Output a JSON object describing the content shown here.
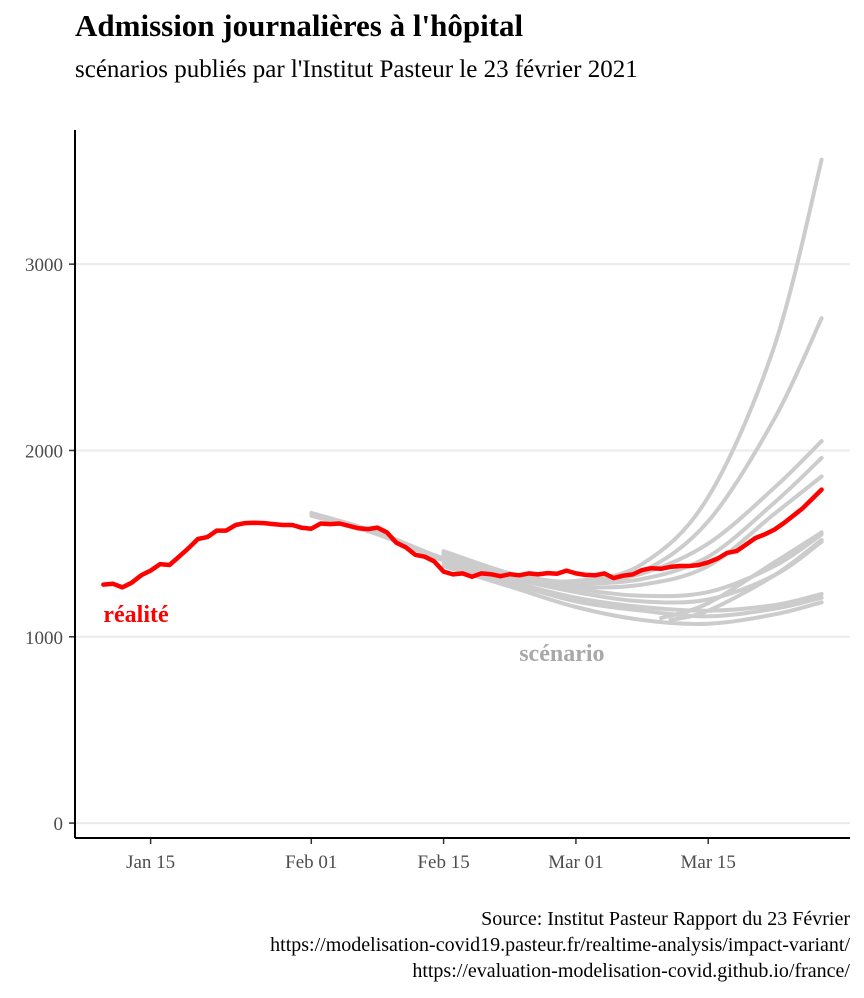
{
  "header": {
    "title": "Admission journalières à l'hôpital",
    "subtitle": "scénarios publiés par l'Institut Pasteur le 23 février 2021"
  },
  "caption": {
    "lines": [
      "Source: Institut Pasteur Rapport du 23 Février",
      "https://modelisation-covid19.pasteur.fr/realtime-analysis/impact-variant/",
      "https://evaluation-modelisation-covid.github.io/france/"
    ]
  },
  "colors": {
    "reality": "#ff0000",
    "scenario": "#cccccc",
    "scenario_label": "#a8a8a8",
    "grid": "#ebebeb",
    "axis": "#000000"
  },
  "chart_data": {
    "type": "line",
    "title": "Admission journalières à l'hôpital",
    "subtitle": "scénarios publiés par l'Institut Pasteur le 23 février 2021",
    "xlabel": "",
    "ylabel": "",
    "x_ticks": [
      {
        "date": "2021-01-15",
        "label": "Jan 15"
      },
      {
        "date": "2021-02-01",
        "label": "Feb 01"
      },
      {
        "date": "2021-02-15",
        "label": "Feb 15"
      },
      {
        "date": "2021-03-01",
        "label": "Mar 01"
      },
      {
        "date": "2021-03-15",
        "label": "Mar 15"
      }
    ],
    "xlim": [
      "2021-01-07",
      "2021-03-30"
    ],
    "y_ticks": [
      0,
      1000,
      2000,
      3000
    ],
    "ylim": [
      -80,
      3720
    ],
    "grid": "horizontal",
    "annotations": [
      {
        "text": "réalité",
        "date": "2021-01-10",
        "value": 1080,
        "color": "#ff0000"
      },
      {
        "text": "scénario",
        "date": "2021-02-23",
        "value": 870,
        "color": "#a8a8a8"
      }
    ],
    "series": [
      {
        "role": "reality",
        "x": [
          "2021-01-10",
          "2021-01-11",
          "2021-01-12",
          "2021-01-13",
          "2021-01-14",
          "2021-01-15",
          "2021-01-16",
          "2021-01-17",
          "2021-01-18",
          "2021-01-19",
          "2021-01-20",
          "2021-01-21",
          "2021-01-22",
          "2021-01-23",
          "2021-01-24",
          "2021-01-25",
          "2021-01-26",
          "2021-01-27",
          "2021-01-28",
          "2021-01-29",
          "2021-01-30",
          "2021-01-31",
          "2021-02-01",
          "2021-02-02",
          "2021-02-03",
          "2021-02-04",
          "2021-02-05",
          "2021-02-06",
          "2021-02-07",
          "2021-02-08",
          "2021-02-09",
          "2021-02-10",
          "2021-02-11",
          "2021-02-12",
          "2021-02-13",
          "2021-02-14",
          "2021-02-15",
          "2021-02-16",
          "2021-02-17",
          "2021-02-18",
          "2021-02-19",
          "2021-02-20",
          "2021-02-21",
          "2021-02-22",
          "2021-02-23",
          "2021-02-24",
          "2021-02-25",
          "2021-02-26",
          "2021-02-27",
          "2021-02-28",
          "2021-03-01",
          "2021-03-02",
          "2021-03-03",
          "2021-03-04",
          "2021-03-05",
          "2021-03-06",
          "2021-03-07",
          "2021-03-08",
          "2021-03-09",
          "2021-03-10",
          "2021-03-11",
          "2021-03-12",
          "2021-03-13",
          "2021-03-14",
          "2021-03-15",
          "2021-03-16",
          "2021-03-17",
          "2021-03-18",
          "2021-03-19",
          "2021-03-20",
          "2021-03-21",
          "2021-03-22",
          "2021-03-23",
          "2021-03-24",
          "2021-03-25",
          "2021-03-26",
          "2021-03-27"
        ],
        "values": [
          1280,
          1285,
          1265,
          1290,
          1330,
          1355,
          1390,
          1385,
          1430,
          1475,
          1525,
          1535,
          1570,
          1570,
          1600,
          1610,
          1612,
          1610,
          1605,
          1600,
          1600,
          1585,
          1580,
          1608,
          1605,
          1608,
          1595,
          1582,
          1578,
          1586,
          1560,
          1505,
          1480,
          1440,
          1430,
          1405,
          1350,
          1335,
          1340,
          1322,
          1340,
          1336,
          1325,
          1336,
          1330,
          1340,
          1335,
          1342,
          1338,
          1355,
          1340,
          1332,
          1330,
          1340,
          1315,
          1328,
          1335,
          1358,
          1368,
          1365,
          1375,
          1380,
          1380,
          1385,
          1400,
          1420,
          1450,
          1460,
          1495,
          1530,
          1550,
          1575,
          1610,
          1650,
          1690,
          1740,
          1790
        ]
      },
      {
        "role": "scenario",
        "x": [
          "2021-02-01",
          "2021-02-08",
          "2021-02-15",
          "2021-02-22",
          "2021-03-01",
          "2021-03-08",
          "2021-03-15",
          "2021-03-22",
          "2021-03-27"
        ],
        "values": [
          1665,
          1560,
          1420,
          1320,
          1300,
          1390,
          1750,
          2560,
          3560
        ]
      },
      {
        "role": "scenario",
        "x": [
          "2021-02-01",
          "2021-02-08",
          "2021-02-15",
          "2021-02-22",
          "2021-03-01",
          "2021-03-08",
          "2021-03-15",
          "2021-03-22",
          "2021-03-27"
        ],
        "values": [
          1650,
          1550,
          1410,
          1310,
          1280,
          1350,
          1620,
          2170,
          2710
        ]
      },
      {
        "role": "scenario",
        "x": [
          "2021-02-15",
          "2021-02-22",
          "2021-03-01",
          "2021-03-08",
          "2021-03-15",
          "2021-03-22",
          "2021-03-27"
        ],
        "values": [
          1440,
          1330,
          1290,
          1340,
          1500,
          1800,
          2050
        ]
      },
      {
        "role": "scenario",
        "x": [
          "2021-02-15",
          "2021-02-22",
          "2021-03-01",
          "2021-03-08",
          "2021-03-15",
          "2021-03-22",
          "2021-03-27"
        ],
        "values": [
          1450,
          1340,
          1290,
          1310,
          1430,
          1720,
          1960
        ]
      },
      {
        "role": "scenario",
        "x": [
          "2021-02-15",
          "2021-02-22",
          "2021-03-01",
          "2021-03-08",
          "2021-03-15",
          "2021-03-22",
          "2021-03-27"
        ],
        "values": [
          1430,
          1330,
          1270,
          1280,
          1380,
          1660,
          1860
        ]
      },
      {
        "role": "scenario",
        "x": [
          "2021-02-15",
          "2021-02-22",
          "2021-03-01",
          "2021-03-08",
          "2021-03-15",
          "2021-03-22",
          "2021-03-27"
        ],
        "values": [
          1460,
          1340,
          1260,
          1220,
          1240,
          1380,
          1550
        ]
      },
      {
        "role": "scenario",
        "x": [
          "2021-02-15",
          "2021-02-22",
          "2021-03-01",
          "2021-03-08",
          "2021-03-15",
          "2021-03-22",
          "2021-03-27"
        ],
        "values": [
          1440,
          1320,
          1240,
          1190,
          1200,
          1330,
          1510
        ]
      },
      {
        "role": "scenario",
        "x": [
          "2021-02-15",
          "2021-02-22",
          "2021-03-01",
          "2021-03-08",
          "2021-03-15",
          "2021-03-22",
          "2021-03-27"
        ],
        "values": [
          1420,
          1300,
          1210,
          1160,
          1140,
          1170,
          1230
        ]
      },
      {
        "role": "scenario",
        "x": [
          "2021-02-15",
          "2021-02-22",
          "2021-03-01",
          "2021-03-08",
          "2021-03-15",
          "2021-03-22",
          "2021-03-27"
        ],
        "values": [
          1400,
          1290,
          1190,
          1140,
          1110,
          1150,
          1210
        ]
      },
      {
        "role": "scenario",
        "x": [
          "2021-02-15",
          "2021-02-22",
          "2021-03-01",
          "2021-03-08",
          "2021-03-15",
          "2021-03-22",
          "2021-03-27"
        ],
        "values": [
          1380,
          1270,
          1160,
          1090,
          1070,
          1120,
          1185
        ]
      },
      {
        "role": "scenario",
        "x": [
          "2021-03-11",
          "2021-03-15",
          "2021-03-22",
          "2021-03-27"
        ],
        "values": [
          1090,
          1140,
          1330,
          1520
        ]
      },
      {
        "role": "scenario",
        "x": [
          "2021-03-10",
          "2021-03-15",
          "2021-03-22",
          "2021-03-27"
        ],
        "values": [
          1100,
          1180,
          1400,
          1560
        ]
      }
    ]
  }
}
